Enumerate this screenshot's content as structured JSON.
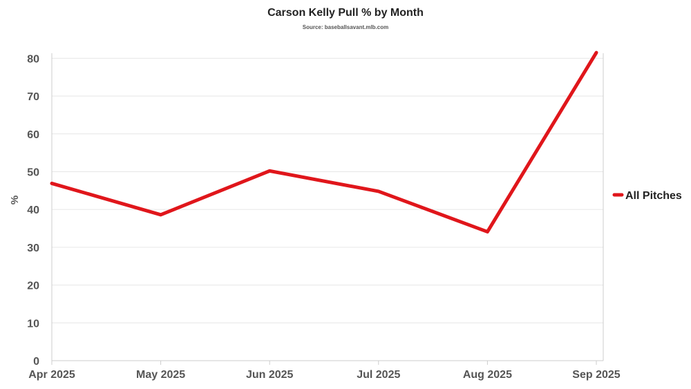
{
  "chart_data": {
    "type": "line",
    "title": "Carson Kelly Pull % by Month",
    "subtitle": "Source: baseballsavant.mlb.com",
    "xlabel": "",
    "ylabel": "%",
    "categories": [
      "Apr 2025",
      "May 2025",
      "Jun 2025",
      "Jul 2025",
      "Aug 2025",
      "Sep 2025"
    ],
    "series": [
      {
        "name": "All Pitches",
        "color": "#e0161b",
        "values": [
          46.9,
          38.6,
          50.2,
          44.8,
          34.1,
          81.5
        ]
      }
    ],
    "ylim": [
      0,
      80
    ],
    "yticks": [
      0,
      10,
      20,
      30,
      40,
      50,
      60,
      70,
      80
    ],
    "grid": true,
    "legend_position": "right"
  }
}
